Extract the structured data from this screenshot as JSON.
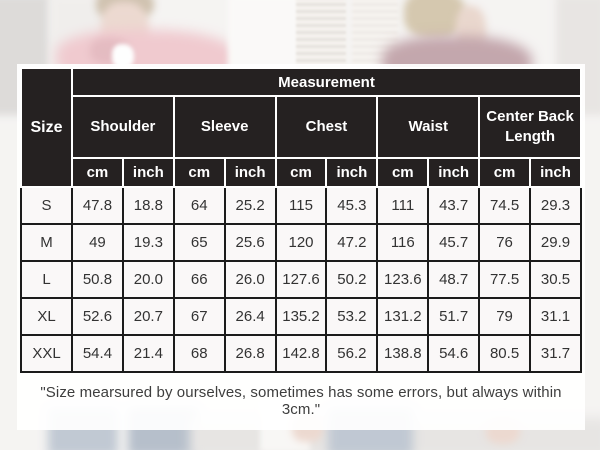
{
  "chart_data": {
    "type": "table",
    "title": "Measurement",
    "corner_label": "Size",
    "column_groups": [
      "Shoulder",
      "Sleeve",
      "Chest",
      "Waist",
      "Center Back Length"
    ],
    "unit_row": [
      "cm",
      "inch",
      "cm",
      "inch",
      "cm",
      "inch",
      "cm",
      "inch",
      "cm",
      "inch"
    ],
    "rows": [
      {
        "size": "S",
        "values": [
          "47.8",
          "18.8",
          "64",
          "25.2",
          "115",
          "45.3",
          "111",
          "43.7",
          "74.5",
          "29.3"
        ]
      },
      {
        "size": "M",
        "values": [
          "49",
          "19.3",
          "65",
          "25.6",
          "120",
          "47.2",
          "116",
          "45.7",
          "76",
          "29.9"
        ]
      },
      {
        "size": "L",
        "values": [
          "50.8",
          "20.0",
          "66",
          "26.0",
          "127.6",
          "50.2",
          "123.6",
          "48.7",
          "77.5",
          "30.5"
        ]
      },
      {
        "size": "XL",
        "values": [
          "52.6",
          "20.7",
          "67",
          "26.4",
          "135.2",
          "53.2",
          "131.2",
          "51.7",
          "79",
          "31.1"
        ]
      },
      {
        "size": "XXL",
        "values": [
          "54.4",
          "21.4",
          "68",
          "26.8",
          "142.8",
          "56.2",
          "138.8",
          "54.6",
          "80.5",
          "31.7"
        ]
      }
    ],
    "footnote": "\"Size mearsured by ourselves, sometimes has some errors, but always within 3cm.\""
  },
  "colors": {
    "header_bg": "#191515",
    "header_text": "#ffffff",
    "body_cell_bg": "#f9f7f7",
    "body_border": "#1b1b1b",
    "accent_pink_shirt": "#dd8a95",
    "accent_maroon_jacket": "#7b3c49"
  }
}
